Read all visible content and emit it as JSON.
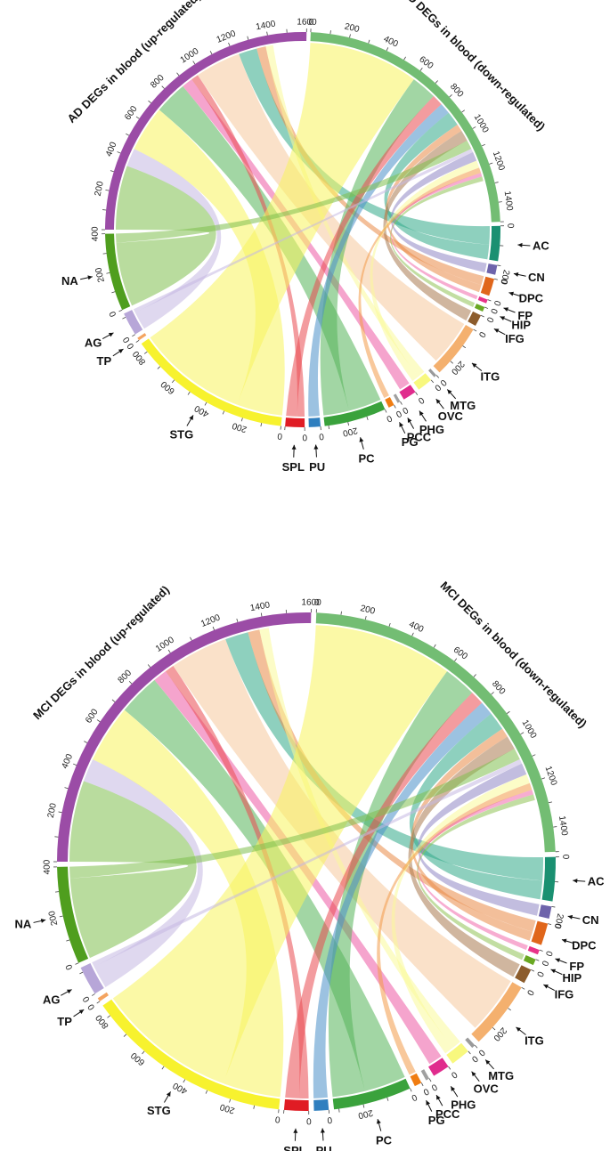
{
  "chart_data": [
    {
      "type": "chord",
      "title_up": "AD DEGs in blood (up-regulated)",
      "title_down": "AD DEGs in blood (down-regulated)",
      "segments": [
        {
          "name": "AD DEGs in blood (up-regulated)",
          "short": "up",
          "value": 1600,
          "color": "#9b4ca6",
          "ticks": [
            200,
            400,
            600,
            800,
            1000,
            1200,
            1400,
            1600
          ]
        },
        {
          "name": "AD DEGs in blood (down-regulated)",
          "short": "down",
          "value": 1500,
          "color": "#73bd73",
          "ticks": [
            0,
            200,
            400,
            600,
            800,
            1000,
            1200,
            1400
          ]
        },
        {
          "name": "AC",
          "value": 180,
          "color": "#1a9071",
          "ticks": [
            0
          ]
        },
        {
          "name": "CN",
          "value": 50,
          "color": "#6e64ab",
          "ticks": [
            200
          ]
        },
        {
          "name": "DPC",
          "value": 90,
          "color": "#e0661b",
          "ticks": [
            0
          ]
        },
        {
          "name": "FP",
          "value": 20,
          "color": "#e8338a",
          "ticks": [
            0
          ]
        },
        {
          "name": "HIP",
          "value": 25,
          "color": "#69a822",
          "ticks": [
            0
          ]
        },
        {
          "name": "IFG",
          "value": 60,
          "color": "#8c5c2c",
          "ticks": [
            0
          ]
        },
        {
          "name": "ITG",
          "value": 280,
          "color": "#f4b06e",
          "ticks": [
            0,
            200
          ]
        },
        {
          "name": "MTG",
          "value": 15,
          "color": "#9a9a9a",
          "ticks": [
            0
          ]
        },
        {
          "name": "OVC",
          "value": 80,
          "color": "#f8f87e",
          "ticks": [
            0
          ]
        },
        {
          "name": "PHG",
          "value": 70,
          "color": "#e02c8d",
          "ticks": [
            0
          ]
        },
        {
          "name": "PCC",
          "value": 15,
          "color": "#a0a0a0",
          "ticks": [
            0
          ]
        },
        {
          "name": "PG",
          "value": 30,
          "color": "#f07d12",
          "ticks": [
            0
          ]
        },
        {
          "name": "PC",
          "value": 320,
          "color": "#3aa23c",
          "ticks": [
            0,
            200
          ]
        },
        {
          "name": "PU",
          "value": 60,
          "color": "#2f7fbf",
          "ticks": [
            0
          ]
        },
        {
          "name": "SPL",
          "value": 100,
          "color": "#e01c24",
          "ticks": [
            0
          ]
        },
        {
          "name": "STG",
          "value": 850,
          "color": "#f7f22e",
          "ticks": [
            0,
            200,
            400,
            600,
            800
          ]
        },
        {
          "name": "TP",
          "value": 15,
          "color": "#f4a460",
          "ticks": [
            0
          ]
        },
        {
          "name": "AG",
          "value": 120,
          "color": "#b7a6d8",
          "ticks": [
            0
          ]
        },
        {
          "name": "NA",
          "value": 400,
          "color": "#4f9e1e",
          "ticks": [
            0,
            200,
            400
          ]
        }
      ],
      "links": [
        {
          "source": "up",
          "target": "NA",
          "value": 350,
          "color": "#7fbf4f"
        },
        {
          "source": "up",
          "target": "AG",
          "value": 100,
          "color": "#c5b8e2"
        },
        {
          "source": "up",
          "target": "STG",
          "value": 250,
          "color": "#f8f45c"
        },
        {
          "source": "up",
          "target": "PC",
          "value": 180,
          "color": "#55b55a"
        },
        {
          "source": "up",
          "target": "PHG",
          "value": 60,
          "color": "#ec5aa4"
        },
        {
          "source": "up",
          "target": "SPL",
          "value": 40,
          "color": "#ea4b51"
        },
        {
          "source": "up",
          "target": "ITG",
          "value": 250,
          "color": "#f6c99c"
        },
        {
          "source": "up",
          "target": "AC",
          "value": 100,
          "color": "#32a989"
        },
        {
          "source": "up",
          "target": "DPC",
          "value": 50,
          "color": "#e98a47"
        },
        {
          "source": "up",
          "target": "OVC",
          "value": 40,
          "color": "#fafa99"
        },
        {
          "source": "down",
          "target": "STG",
          "value": 600,
          "color": "#f8f45c"
        },
        {
          "source": "down",
          "target": "PC",
          "value": 140,
          "color": "#55b55a"
        },
        {
          "source": "down",
          "target": "SPL",
          "value": 60,
          "color": "#ea4b51"
        },
        {
          "source": "down",
          "target": "PU",
          "value": 60,
          "color": "#4b90c9"
        },
        {
          "source": "down",
          "target": "AC",
          "value": 80,
          "color": "#32a989"
        },
        {
          "source": "down",
          "target": "DPC",
          "value": 40,
          "color": "#e98a47"
        },
        {
          "source": "down",
          "target": "IFG",
          "value": 60,
          "color": "#a97a50"
        },
        {
          "source": "down",
          "target": "NA",
          "value": 50,
          "color": "#7fbf4f"
        },
        {
          "source": "down",
          "target": "AG",
          "value": 20,
          "color": "#c5b8e2"
        },
        {
          "source": "down",
          "target": "CN",
          "value": 50,
          "color": "#8f86c4"
        },
        {
          "source": "down",
          "target": "OVC",
          "value": 40,
          "color": "#fafa99"
        },
        {
          "source": "down",
          "target": "PG",
          "value": 30,
          "color": "#f39a48"
        },
        {
          "source": "down",
          "target": "FP",
          "value": 20,
          "color": "#f06aab"
        },
        {
          "source": "down",
          "target": "HIP",
          "value": 25,
          "color": "#8fc255"
        }
      ]
    },
    {
      "type": "chord",
      "title_up": "MCI DEGs in blood (up-regulated)",
      "title_down": "MCI DEGs in blood (down-regulated)",
      "segments": [
        {
          "name": "MCI DEGs in blood (up-regulated)",
          "short": "up",
          "value": 1600,
          "color": "#9b4ca6",
          "ticks": [
            200,
            400,
            600,
            800,
            1000,
            1200,
            1400,
            1600
          ]
        },
        {
          "name": "MCI DEGs in blood (down-regulated)",
          "short": "down",
          "value": 1500,
          "color": "#73bd73",
          "ticks": [
            0,
            200,
            400,
            600,
            800,
            1000,
            1200,
            1400
          ]
        },
        {
          "name": "AC",
          "value": 180,
          "color": "#1a9071",
          "ticks": [
            0
          ]
        },
        {
          "name": "CN",
          "value": 50,
          "color": "#6e64ab",
          "ticks": [
            200
          ]
        },
        {
          "name": "DPC",
          "value": 90,
          "color": "#e0661b",
          "ticks": [
            0
          ]
        },
        {
          "name": "FP",
          "value": 20,
          "color": "#e8338a",
          "ticks": [
            0
          ]
        },
        {
          "name": "HIP",
          "value": 25,
          "color": "#69a822",
          "ticks": [
            0
          ]
        },
        {
          "name": "IFG",
          "value": 60,
          "color": "#8c5c2c",
          "ticks": [
            0
          ]
        },
        {
          "name": "ITG",
          "value": 280,
          "color": "#f4b06e",
          "ticks": [
            0,
            200
          ]
        },
        {
          "name": "MTG",
          "value": 15,
          "color": "#9a9a9a",
          "ticks": [
            0
          ]
        },
        {
          "name": "OVC",
          "value": 80,
          "color": "#f8f87e",
          "ticks": [
            0
          ]
        },
        {
          "name": "PHG",
          "value": 70,
          "color": "#e02c8d",
          "ticks": [
            0
          ]
        },
        {
          "name": "PCC",
          "value": 15,
          "color": "#a0a0a0",
          "ticks": [
            0
          ]
        },
        {
          "name": "PG",
          "value": 30,
          "color": "#f07d12",
          "ticks": [
            0
          ]
        },
        {
          "name": "PC",
          "value": 320,
          "color": "#3aa23c",
          "ticks": [
            0,
            200
          ]
        },
        {
          "name": "PU",
          "value": 60,
          "color": "#2f7fbf",
          "ticks": [
            0
          ]
        },
        {
          "name": "SPL",
          "value": 100,
          "color": "#e01c24",
          "ticks": [
            0
          ]
        },
        {
          "name": "STG",
          "value": 850,
          "color": "#f7f22e",
          "ticks": [
            0,
            200,
            400,
            600,
            800
          ]
        },
        {
          "name": "TP",
          "value": 15,
          "color": "#f4a460",
          "ticks": [
            0
          ]
        },
        {
          "name": "AG",
          "value": 120,
          "color": "#b7a6d8",
          "ticks": [
            0
          ]
        },
        {
          "name": "NA",
          "value": 400,
          "color": "#4f9e1e",
          "ticks": [
            0,
            200,
            400
          ]
        }
      ],
      "links": [
        {
          "source": "up",
          "target": "NA",
          "value": 350,
          "color": "#7fbf4f"
        },
        {
          "source": "up",
          "target": "AG",
          "value": 100,
          "color": "#c5b8e2"
        },
        {
          "source": "up",
          "target": "STG",
          "value": 250,
          "color": "#f8f45c"
        },
        {
          "source": "up",
          "target": "PC",
          "value": 180,
          "color": "#55b55a"
        },
        {
          "source": "up",
          "target": "PHG",
          "value": 60,
          "color": "#ec5aa4"
        },
        {
          "source": "up",
          "target": "SPL",
          "value": 40,
          "color": "#ea4b51"
        },
        {
          "source": "up",
          "target": "ITG",
          "value": 250,
          "color": "#f6c99c"
        },
        {
          "source": "up",
          "target": "AC",
          "value": 100,
          "color": "#32a989"
        },
        {
          "source": "up",
          "target": "DPC",
          "value": 50,
          "color": "#e98a47"
        },
        {
          "source": "up",
          "target": "OVC",
          "value": 40,
          "color": "#fafa99"
        },
        {
          "source": "down",
          "target": "STG",
          "value": 600,
          "color": "#f8f45c"
        },
        {
          "source": "down",
          "target": "PC",
          "value": 140,
          "color": "#55b55a"
        },
        {
          "source": "down",
          "target": "SPL",
          "value": 60,
          "color": "#ea4b51"
        },
        {
          "source": "down",
          "target": "PU",
          "value": 60,
          "color": "#4b90c9"
        },
        {
          "source": "down",
          "target": "AC",
          "value": 80,
          "color": "#32a989"
        },
        {
          "source": "down",
          "target": "DPC",
          "value": 40,
          "color": "#e98a47"
        },
        {
          "source": "down",
          "target": "IFG",
          "value": 60,
          "color": "#a97a50"
        },
        {
          "source": "down",
          "target": "NA",
          "value": 50,
          "color": "#7fbf4f"
        },
        {
          "source": "down",
          "target": "AG",
          "value": 20,
          "color": "#c5b8e2"
        },
        {
          "source": "down",
          "target": "CN",
          "value": 50,
          "color": "#8f86c4"
        },
        {
          "source": "down",
          "target": "OVC",
          "value": 40,
          "color": "#fafa99"
        },
        {
          "source": "down",
          "target": "PG",
          "value": 30,
          "color": "#f39a48"
        },
        {
          "source": "down",
          "target": "FP",
          "value": 20,
          "color": "#f06aab"
        },
        {
          "source": "down",
          "target": "HIP",
          "value": 25,
          "color": "#8fc255"
        }
      ]
    }
  ]
}
